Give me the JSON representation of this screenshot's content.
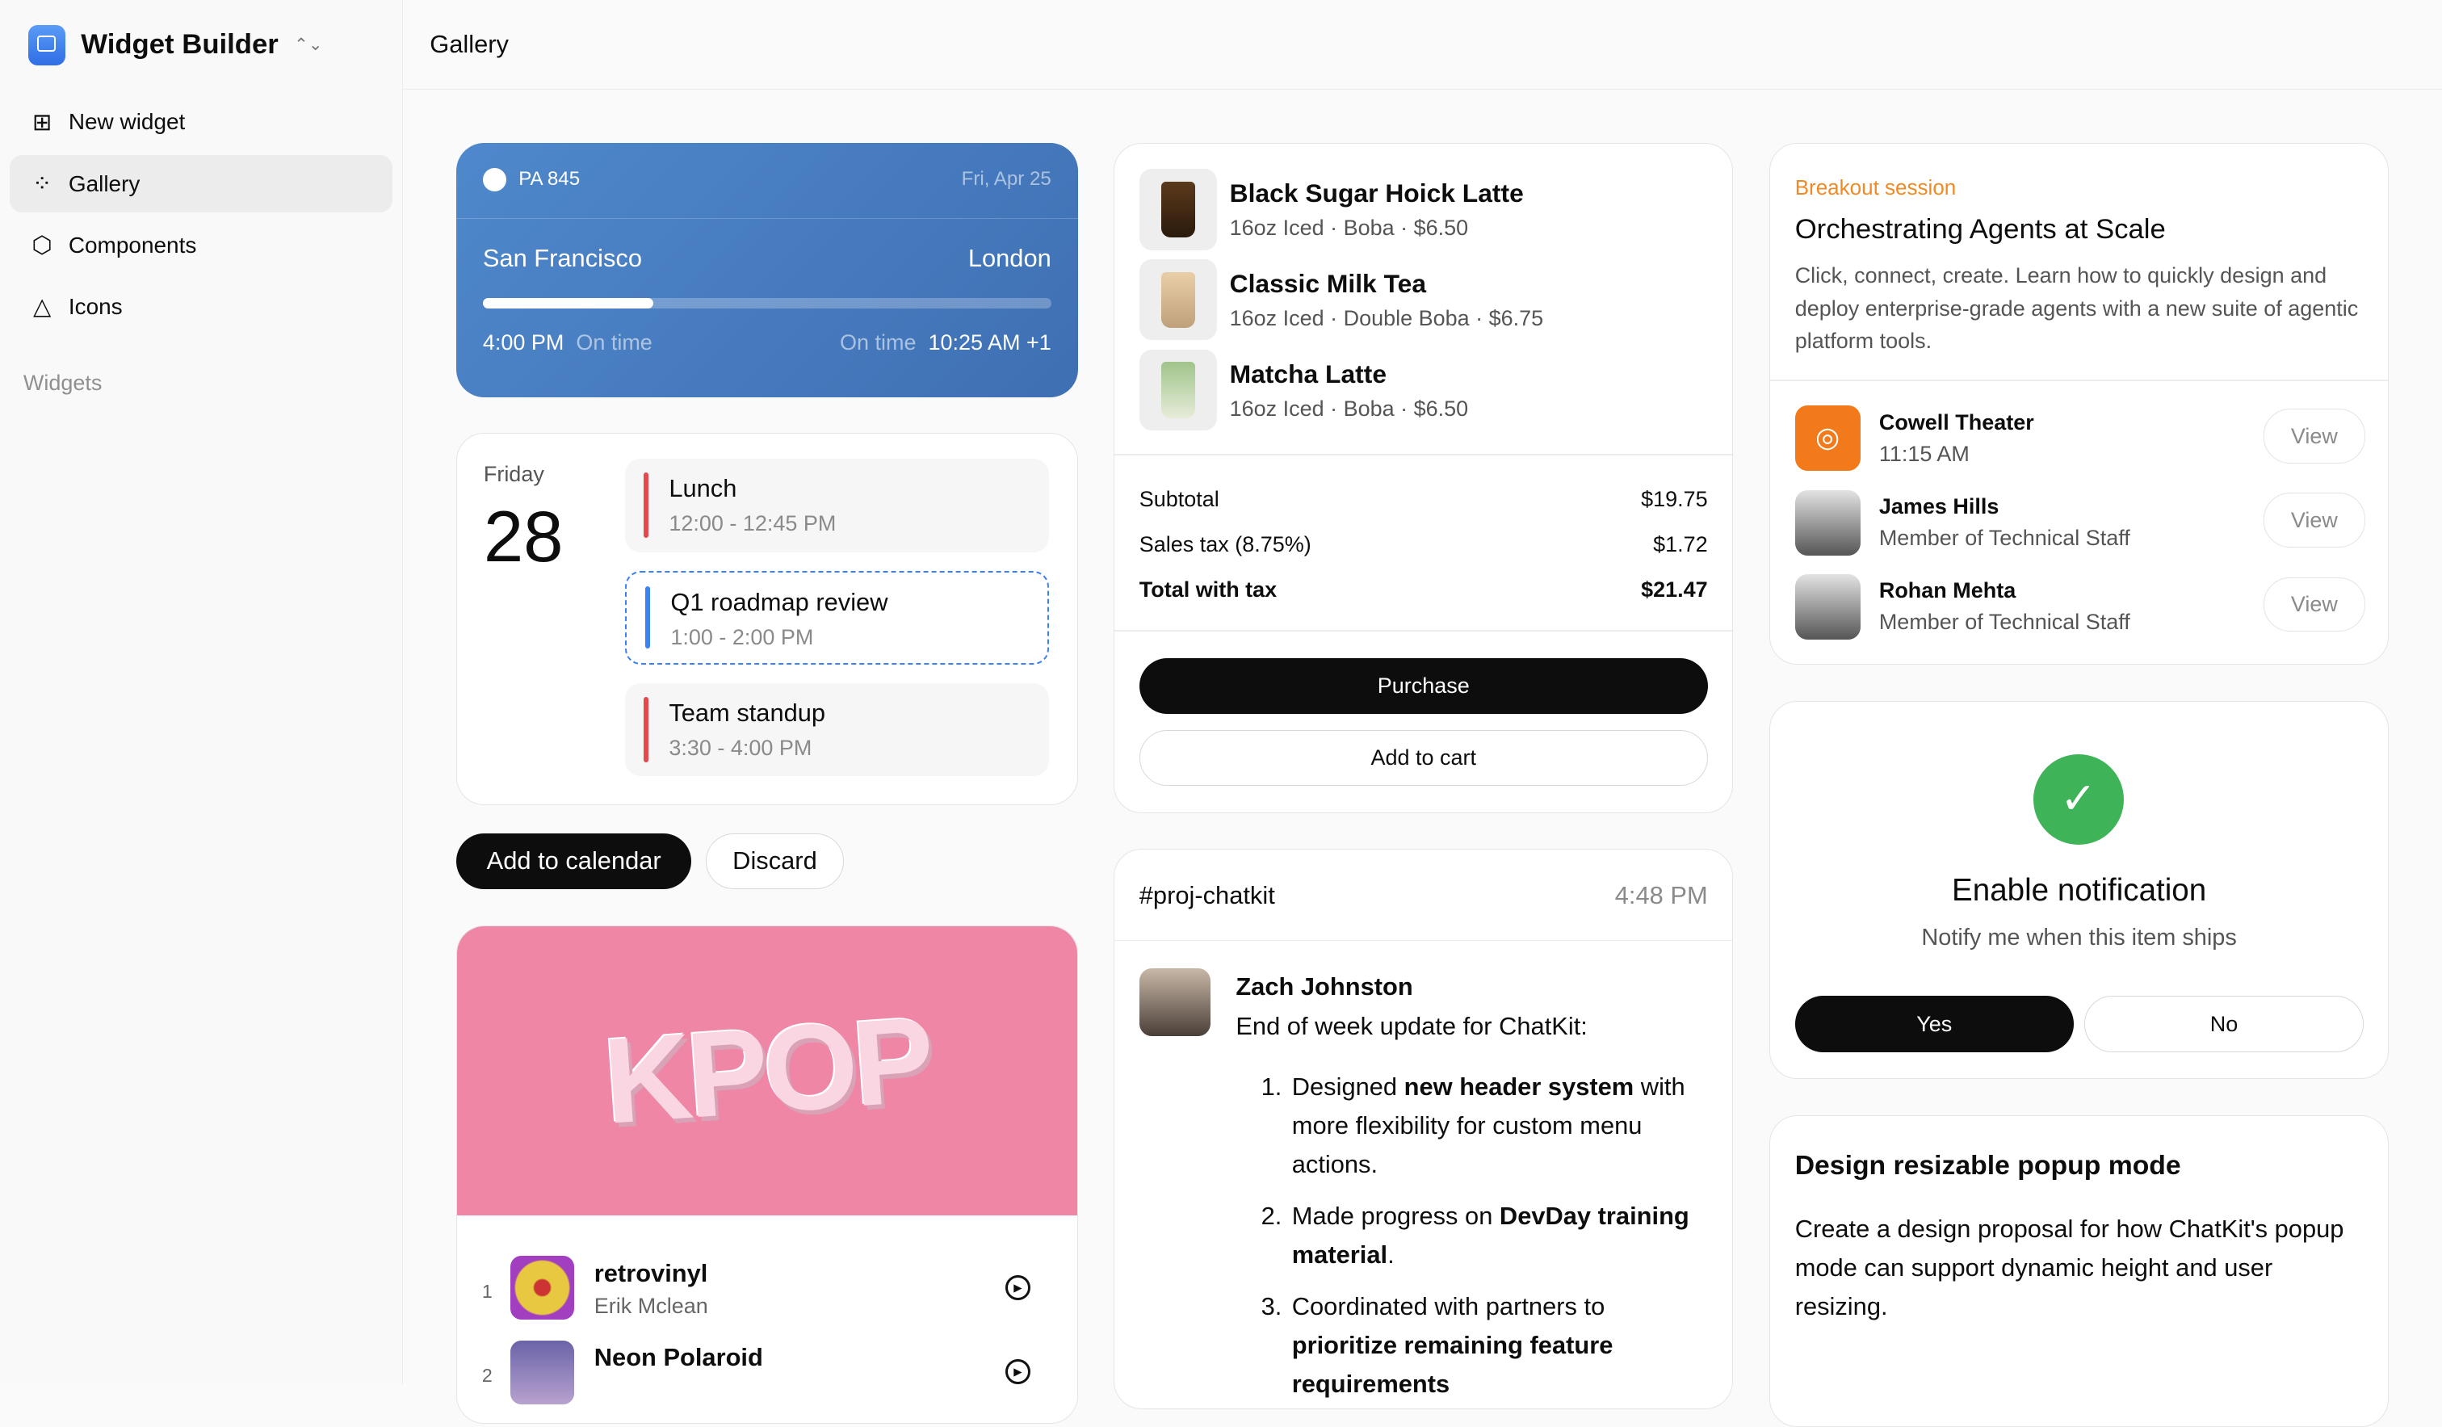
{
  "sidebar": {
    "app_title": "Widget Builder",
    "items": [
      {
        "label": "New widget",
        "icon": "plus-square-icon"
      },
      {
        "label": "Gallery",
        "icon": "grid-icon",
        "active": true
      },
      {
        "label": "Components",
        "icon": "cube-icon"
      },
      {
        "label": "Icons",
        "icon": "shapes-icon"
      }
    ],
    "section": "Widgets"
  },
  "header": {
    "title": "Gallery"
  },
  "flight": {
    "flight_no": "PA 845",
    "date": "Fri, Apr 25",
    "from": "San Francisco",
    "to": "London",
    "progress": 0.3,
    "depart_time": "4:00 PM",
    "depart_status": "On time",
    "arrive_status": "On time",
    "arrive_time": "10:25 AM +1"
  },
  "calendar": {
    "day": "Friday",
    "date": "28",
    "events": [
      {
        "title": "Lunch",
        "time": "12:00 - 12:45 PM",
        "color": "#e5484d"
      },
      {
        "title": "Q1 roadmap review",
        "time": "1:00 - 2:00 PM",
        "color": "#3b82f6"
      },
      {
        "title": "Team standup",
        "time": "3:30 - 4:00 PM",
        "color": "#e5484d"
      }
    ],
    "add_label": "Add to calendar",
    "discard_label": "Discard"
  },
  "playlist": {
    "cover_text": "KPOP",
    "tracks": [
      {
        "n": "1",
        "title": "retrovinyl",
        "artist": "Erik Mclean"
      },
      {
        "n": "2",
        "title": "Neon Polaroid"
      }
    ]
  },
  "order": {
    "items": [
      {
        "name": "Black Sugar Hoick Latte",
        "desc": "16oz Iced · Boba · $6.50"
      },
      {
        "name": "Classic Milk Tea",
        "desc": "16oz Iced · Double Boba · $6.75"
      },
      {
        "name": "Matcha Latte",
        "desc": "16oz Iced · Boba · $6.50"
      }
    ],
    "subtotal_label": "Subtotal",
    "subtotal": "$19.75",
    "tax_label": "Sales tax (8.75%)",
    "tax": "$1.72",
    "total_label": "Total with tax",
    "total": "$21.47",
    "purchase_label": "Purchase",
    "cart_label": "Add to cart"
  },
  "chat": {
    "channel": "#proj-chatkit",
    "time": "4:48 PM",
    "author": "Zach Johnston",
    "message": "End of week update for ChatKit:",
    "list": [
      [
        "Designed ",
        "new header system",
        " with more flexibility for custom menu actions."
      ],
      [
        "Made progress on ",
        "DevDay training material",
        "."
      ],
      [
        "Coordinated with partners to ",
        "prioritize remaining feature requirements",
        ""
      ]
    ]
  },
  "event": {
    "tag": "Breakout session",
    "title": "Orchestrating Agents at Scale",
    "desc": "Click, connect, create. Learn how to quickly design and deploy enterprise-grade agents with a new suite of agentic platform tools.",
    "people": [
      {
        "name": "Cowell Theater",
        "role": "11:15 AM"
      },
      {
        "name": "James Hills",
        "role": "Member of Technical Staff"
      },
      {
        "name": "Rohan Mehta",
        "role": "Member of Technical Staff"
      }
    ],
    "view_label": "View"
  },
  "notification": {
    "title": "Enable notification",
    "desc": "Notify me when this item ships",
    "yes": "Yes",
    "no": "No"
  },
  "task": {
    "title": "Design resizable popup mode",
    "desc": "Create a design proposal for how ChatKit's popup mode can support dynamic height and user resizing."
  }
}
